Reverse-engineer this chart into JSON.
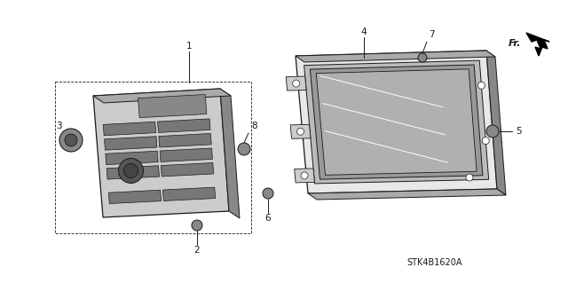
{
  "bg_color": "#ffffff",
  "line_color": "#1a1a1a",
  "diagram_code": "STK4B1620A",
  "fr_label": "Fr.",
  "figsize": [
    6.4,
    3.19
  ],
  "dpi": 100,
  "gray_dark": "#555555",
  "gray_mid": "#888888",
  "gray_light": "#cccccc",
  "gray_panel": "#aaaaaa",
  "gray_btn": "#777777",
  "gray_screen": "#999999"
}
